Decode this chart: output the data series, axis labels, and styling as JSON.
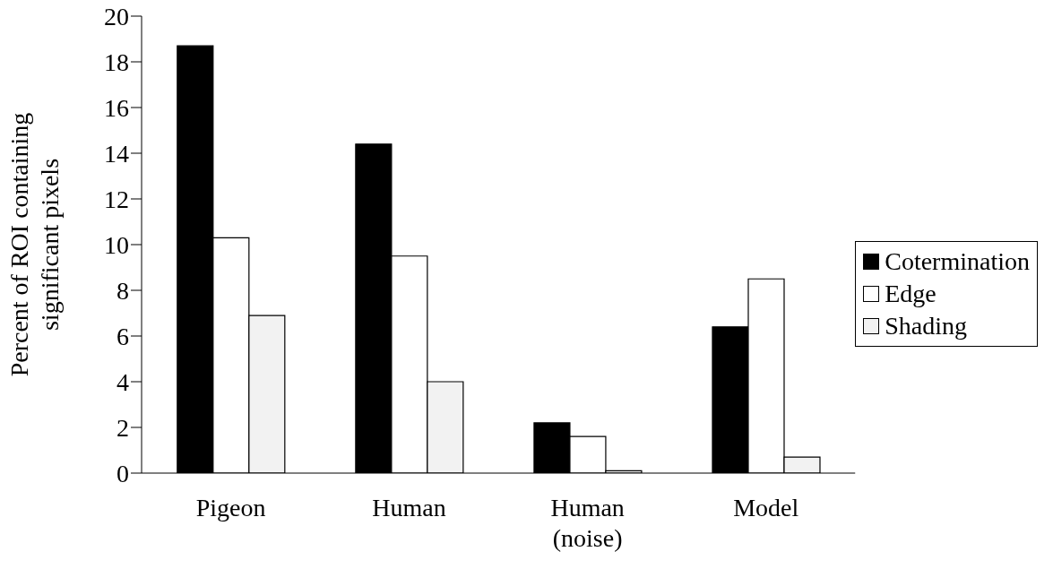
{
  "chart_data": {
    "type": "bar",
    "ylabel": "Percent of ROI containing significant pixels",
    "categories": [
      "Pigeon",
      "Human",
      "Human (noise)",
      "Model"
    ],
    "series": [
      {
        "name": "Cotermination",
        "color": "#000000",
        "values": [
          18.7,
          14.4,
          2.2,
          6.4
        ]
      },
      {
        "name": "Edge",
        "color": "#ffffff",
        "values": [
          10.3,
          9.5,
          1.6,
          8.5
        ]
      },
      {
        "name": "Shading",
        "color": "#f2f2f2",
        "values": [
          6.9,
          4.0,
          0.1,
          0.7
        ]
      }
    ],
    "ylim": [
      0,
      20
    ],
    "yticks": [
      0,
      2,
      4,
      6,
      8,
      10,
      12,
      14,
      16,
      18,
      20
    ],
    "grid": false,
    "legend": "right"
  }
}
